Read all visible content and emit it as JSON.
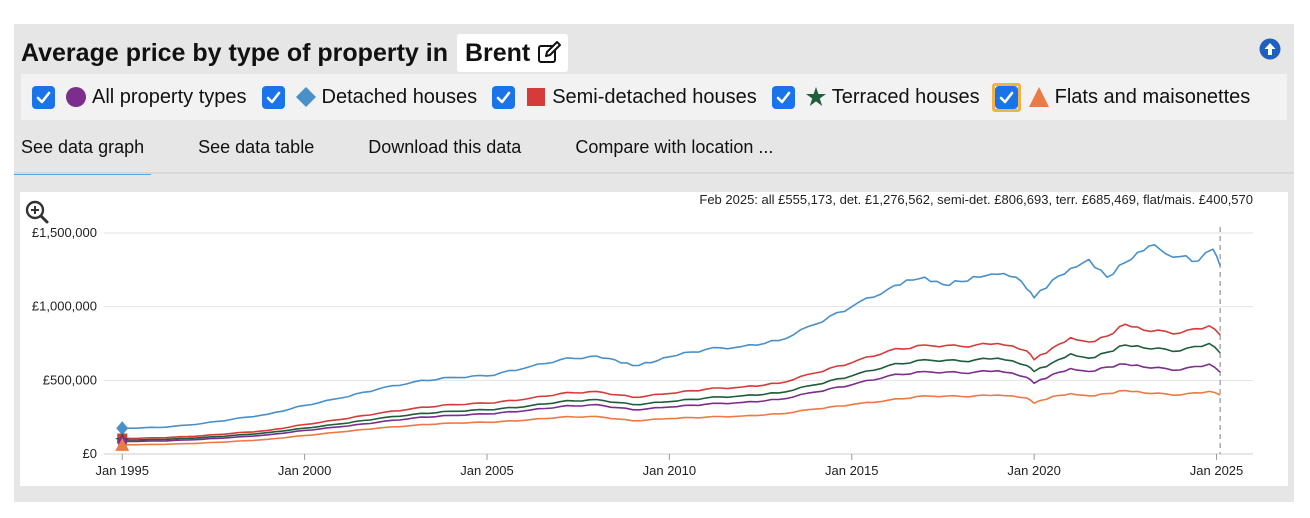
{
  "header": {
    "title": "Average price by type of property in",
    "location": "Brent"
  },
  "legend": [
    {
      "label": "All property types",
      "checked": true,
      "marker": "circle",
      "color": "#7b2e8c"
    },
    {
      "label": "Detached houses",
      "checked": true,
      "marker": "diamond",
      "color": "#4a90c8"
    },
    {
      "label": "Semi-detached houses",
      "checked": true,
      "marker": "square",
      "color": "#d43c3c"
    },
    {
      "label": "Terraced houses",
      "checked": true,
      "marker": "star",
      "color": "#1e5e3a"
    },
    {
      "label": "Flats and maisonettes",
      "checked": true,
      "marker": "triangle",
      "color": "#ec7a44"
    }
  ],
  "tabs": [
    {
      "label": "See data graph",
      "active": true
    },
    {
      "label": "See data table",
      "active": false
    },
    {
      "label": "Download this data",
      "active": false
    },
    {
      "label": "Compare with location ...",
      "active": false
    }
  ],
  "chart_data": {
    "type": "line",
    "annotation": "Feb 2025: all £555,173, det. £1,276,562, semi-det. £806,693, terr. £685,469, flat/mais. £400,570",
    "x_ticks": [
      "Jan 1995",
      "Jan 2000",
      "Jan 2005",
      "Jan 2010",
      "Jan 2015",
      "Jan 2020",
      "Jan 2025"
    ],
    "y_ticks": [
      "£0",
      "£500,000",
      "£1,000,000",
      "£1,500,000"
    ],
    "ylim": [
      0,
      1500000
    ],
    "xlim": [
      1994.5,
      2026.0
    ],
    "grid": true,
    "cursor_x": 2025.1,
    "series": [
      {
        "name": "Detached houses",
        "color": "#4a90c8",
        "marker": "diamond",
        "points": [
          [
            1995,
            175000
          ],
          [
            1996,
            180000
          ],
          [
            1997,
            200000
          ],
          [
            1998,
            235000
          ],
          [
            1999,
            270000
          ],
          [
            2000,
            330000
          ],
          [
            2001,
            380000
          ],
          [
            2002,
            440000
          ],
          [
            2003,
            490000
          ],
          [
            2004,
            520000
          ],
          [
            2005,
            530000
          ],
          [
            2006,
            580000
          ],
          [
            2007,
            640000
          ],
          [
            2008,
            665000
          ],
          [
            2008.5,
            640000
          ],
          [
            2009,
            600000
          ],
          [
            2009.5,
            620000
          ],
          [
            2010,
            660000
          ],
          [
            2011,
            710000
          ],
          [
            2012,
            730000
          ],
          [
            2013,
            770000
          ],
          [
            2014,
            880000
          ],
          [
            2015,
            1000000
          ],
          [
            2016,
            1120000
          ],
          [
            2016.5,
            1180000
          ],
          [
            2017,
            1200000
          ],
          [
            2017.5,
            1150000
          ],
          [
            2018,
            1170000
          ],
          [
            2018.5,
            1200000
          ],
          [
            2019,
            1220000
          ],
          [
            2019.5,
            1200000
          ],
          [
            2019.8,
            1120000
          ],
          [
            2020,
            1060000
          ],
          [
            2020.5,
            1180000
          ],
          [
            2021,
            1260000
          ],
          [
            2021.5,
            1320000
          ],
          [
            2022,
            1200000
          ],
          [
            2022.5,
            1300000
          ],
          [
            2023,
            1380000
          ],
          [
            2023.3,
            1420000
          ],
          [
            2023.6,
            1360000
          ],
          [
            2024,
            1340000
          ],
          [
            2024.5,
            1310000
          ],
          [
            2024.9,
            1390000
          ],
          [
            2025.1,
            1276562
          ]
        ]
      },
      {
        "name": "Semi-detached houses",
        "color": "#d43c3c",
        "marker": "square",
        "points": [
          [
            1995,
            105000
          ],
          [
            1996,
            110000
          ],
          [
            1997,
            120000
          ],
          [
            1998,
            140000
          ],
          [
            1999,
            160000
          ],
          [
            2000,
            200000
          ],
          [
            2001,
            235000
          ],
          [
            2002,
            275000
          ],
          [
            2003,
            310000
          ],
          [
            2004,
            335000
          ],
          [
            2005,
            345000
          ],
          [
            2006,
            370000
          ],
          [
            2007,
            410000
          ],
          [
            2008,
            425000
          ],
          [
            2009,
            385000
          ],
          [
            2010,
            410000
          ],
          [
            2011,
            440000
          ],
          [
            2012,
            455000
          ],
          [
            2013,
            480000
          ],
          [
            2014,
            550000
          ],
          [
            2015,
            620000
          ],
          [
            2016,
            700000
          ],
          [
            2017,
            740000
          ],
          [
            2018,
            730000
          ],
          [
            2019,
            750000
          ],
          [
            2019.8,
            700000
          ],
          [
            2020,
            640000
          ],
          [
            2020.5,
            720000
          ],
          [
            2021,
            790000
          ],
          [
            2021.5,
            760000
          ],
          [
            2022,
            800000
          ],
          [
            2022.5,
            880000
          ],
          [
            2023,
            840000
          ],
          [
            2024,
            820000
          ],
          [
            2024.8,
            870000
          ],
          [
            2025.1,
            806693
          ]
        ]
      },
      {
        "name": "Terraced houses",
        "color": "#1e5e3a",
        "marker": "star",
        "points": [
          [
            1995,
            95000
          ],
          [
            1996,
            98000
          ],
          [
            1997,
            108000
          ],
          [
            1998,
            125000
          ],
          [
            1999,
            145000
          ],
          [
            2000,
            175000
          ],
          [
            2001,
            205000
          ],
          [
            2002,
            240000
          ],
          [
            2003,
            270000
          ],
          [
            2004,
            290000
          ],
          [
            2005,
            300000
          ],
          [
            2006,
            320000
          ],
          [
            2007,
            355000
          ],
          [
            2008,
            370000
          ],
          [
            2009,
            335000
          ],
          [
            2010,
            355000
          ],
          [
            2011,
            380000
          ],
          [
            2012,
            395000
          ],
          [
            2013,
            415000
          ],
          [
            2014,
            470000
          ],
          [
            2015,
            530000
          ],
          [
            2016,
            600000
          ],
          [
            2017,
            640000
          ],
          [
            2018,
            630000
          ],
          [
            2019,
            650000
          ],
          [
            2019.8,
            600000
          ],
          [
            2020,
            560000
          ],
          [
            2020.5,
            620000
          ],
          [
            2021,
            680000
          ],
          [
            2021.5,
            650000
          ],
          [
            2022,
            690000
          ],
          [
            2022.5,
            740000
          ],
          [
            2023,
            720000
          ],
          [
            2024,
            700000
          ],
          [
            2024.8,
            750000
          ],
          [
            2025.1,
            685469
          ]
        ]
      },
      {
        "name": "All property types",
        "color": "#7b2e8c",
        "marker": "circle",
        "points": [
          [
            1995,
            85000
          ],
          [
            1996,
            88000
          ],
          [
            1997,
            97000
          ],
          [
            1998,
            112000
          ],
          [
            1999,
            130000
          ],
          [
            2000,
            160000
          ],
          [
            2001,
            185000
          ],
          [
            2002,
            215000
          ],
          [
            2003,
            245000
          ],
          [
            2004,
            262000
          ],
          [
            2005,
            272000
          ],
          [
            2006,
            292000
          ],
          [
            2007,
            322000
          ],
          [
            2008,
            335000
          ],
          [
            2009,
            300000
          ],
          [
            2010,
            318000
          ],
          [
            2011,
            338000
          ],
          [
            2012,
            350000
          ],
          [
            2013,
            370000
          ],
          [
            2014,
            420000
          ],
          [
            2015,
            470000
          ],
          [
            2016,
            530000
          ],
          [
            2017,
            560000
          ],
          [
            2018,
            550000
          ],
          [
            2019,
            565000
          ],
          [
            2019.8,
            520000
          ],
          [
            2020,
            480000
          ],
          [
            2020.5,
            540000
          ],
          [
            2021,
            580000
          ],
          [
            2021.5,
            560000
          ],
          [
            2022,
            590000
          ],
          [
            2022.5,
            610000
          ],
          [
            2023,
            590000
          ],
          [
            2024,
            570000
          ],
          [
            2024.8,
            610000
          ],
          [
            2025.1,
            555173
          ]
        ]
      },
      {
        "name": "Flats and maisonettes",
        "color": "#ec7a44",
        "marker": "triangle",
        "points": [
          [
            1995,
            62000
          ],
          [
            1996,
            65000
          ],
          [
            1997,
            72000
          ],
          [
            1998,
            84000
          ],
          [
            1999,
            100000
          ],
          [
            2000,
            125000
          ],
          [
            2001,
            150000
          ],
          [
            2002,
            175000
          ],
          [
            2003,
            195000
          ],
          [
            2004,
            210000
          ],
          [
            2005,
            215000
          ],
          [
            2006,
            228000
          ],
          [
            2007,
            250000
          ],
          [
            2008,
            255000
          ],
          [
            2009,
            225000
          ],
          [
            2010,
            240000
          ],
          [
            2011,
            250000
          ],
          [
            2012,
            258000
          ],
          [
            2013,
            272000
          ],
          [
            2014,
            305000
          ],
          [
            2015,
            335000
          ],
          [
            2016,
            365000
          ],
          [
            2017,
            395000
          ],
          [
            2018,
            390000
          ],
          [
            2019,
            400000
          ],
          [
            2019.8,
            380000
          ],
          [
            2020,
            345000
          ],
          [
            2020.5,
            390000
          ],
          [
            2021,
            410000
          ],
          [
            2021.5,
            395000
          ],
          [
            2022,
            410000
          ],
          [
            2022.5,
            430000
          ],
          [
            2023,
            415000
          ],
          [
            2024,
            400000
          ],
          [
            2024.8,
            425000
          ],
          [
            2025.1,
            400570
          ]
        ]
      }
    ]
  }
}
